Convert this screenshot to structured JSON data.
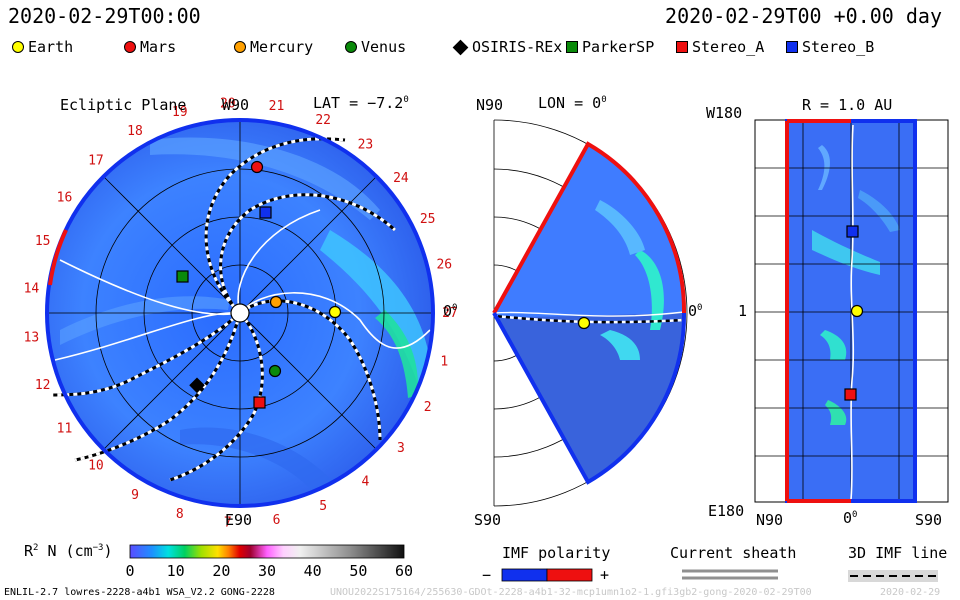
{
  "header": {
    "date_left": "2020-02-29T00:00",
    "date_right": "2020-02-29T00 +0.00 day"
  },
  "legend": [
    {
      "name": "Earth",
      "color": "#ffff00",
      "shape": "circle"
    },
    {
      "name": "Mars",
      "color": "#ee1010",
      "shape": "circle"
    },
    {
      "name": "Mercury",
      "color": "#ffa000",
      "shape": "circle"
    },
    {
      "name": "Venus",
      "color": "#0a8a0a",
      "shape": "circle"
    },
    {
      "name": "OSIRIS-REx",
      "color": "#000000",
      "shape": "diamond"
    },
    {
      "name": "ParkerSP",
      "color": "#0a8a0a",
      "shape": "square"
    },
    {
      "name": "Stereo_A",
      "color": "#ee1010",
      "shape": "square"
    },
    {
      "name": "Stereo_B",
      "color": "#1030ee",
      "shape": "square"
    }
  ],
  "panel_ecliptic": {
    "title": "Ecliptic Plane",
    "top_label": "W90",
    "bottom_label": "E90",
    "right_label": "0",
    "right_sup": "0",
    "lat_label": "LAT = −7.2",
    "lat_sup": "0",
    "carrington_numbers": [
      "1",
      "2",
      "3",
      "4",
      "5",
      "6",
      "7",
      "8",
      "9",
      "10",
      "11",
      "12",
      "13",
      "14",
      "15",
      "16",
      "17",
      "18",
      "19",
      "20",
      "21",
      "22",
      "23",
      "24",
      "25",
      "26",
      "27"
    ]
  },
  "panel_meridional": {
    "top_label": "N90",
    "bottom_label": "S90",
    "lon_label": "LON = 0",
    "lon_sup": "0",
    "right_label": "0",
    "right_sup": "0"
  },
  "panel_radial": {
    "title": "R = 1.0 AU",
    "top_left": "W180",
    "bottom_left": "E180",
    "mid_left": "1",
    "x_left": "N90",
    "x_mid": "0",
    "x_mid_sup": "0",
    "x_right": "S90"
  },
  "colorbar": {
    "label": "R",
    "label_sup": "2",
    "label_rest": " N (cm",
    "label_unit_sup": "−3",
    "label_close": ")",
    "ticks": [
      "0",
      "10",
      "20",
      "30",
      "40",
      "50",
      "60"
    ]
  },
  "imf_polarity": {
    "title": "IMF polarity",
    "minus": "−",
    "plus": "+"
  },
  "current_sheath": {
    "title": "Current sheath"
  },
  "imf_line": {
    "title": "3D IMF line"
  },
  "footer": {
    "left": "ENLIL-2.7 lowres-2228-a4b1 WSA_V2.2 GONG-2228",
    "mid": "UNOU2022S175164/255630-GDOt-2228-a4b1-32-mcp1umn1o2-1.gfi3gb2-gong-2020-02-29T00",
    "right": "2020-02-29"
  },
  "chart_data": {
    "type": "heatmap",
    "colorbar_range": [
      0,
      60
    ],
    "colorbar_tick_values": [
      0,
      10,
      20,
      30,
      40,
      50,
      60
    ]
  }
}
